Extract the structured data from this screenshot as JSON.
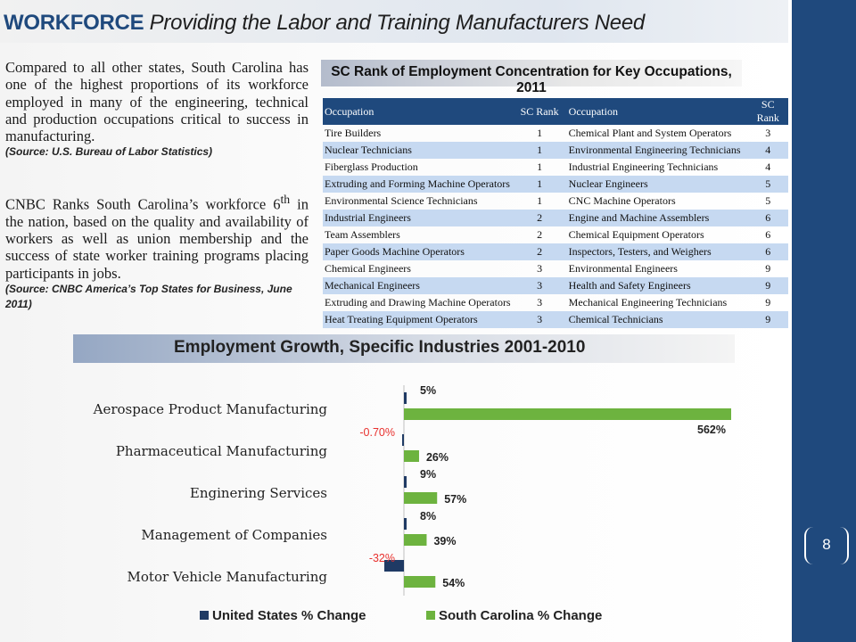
{
  "header": {
    "bold": "WORKFORCE",
    "italic": "Providing the Labor and Training Manufacturers Need"
  },
  "left_text": {
    "para1": "Compared to all other states, South Carolina has one of the highest proportions of its workforce employed in many of the engineering, technical and production occupations critical to success in manufacturing.",
    "source1": "(Source: U.S. Bureau of Labor Statistics)",
    "para2_before": "CNBC Ranks South Carolina’s workforce 6",
    "para2_sup": "th",
    "para2_after": " in the nation, based on the quality and availability of workers as well as union membership and the success of state worker training programs placing participants in jobs.",
    "source2": "(Source: CNBC America’s Top States for Business, June 2011)"
  },
  "table": {
    "title": "SC Rank of Employment Concentration for Key Occupations, 2011",
    "headers": [
      "Occupation",
      "SC Rank",
      "Occupation",
      "SC Rank"
    ],
    "rows": [
      [
        "Tire Builders",
        "1",
        "Chemical Plant and System Operators",
        "3"
      ],
      [
        "Nuclear Technicians",
        "1",
        "Environmental Engineering Technicians",
        "4"
      ],
      [
        "Fiberglass Production",
        "1",
        "Industrial Engineering Technicians",
        "4"
      ],
      [
        "Extruding and Forming Machine Operators",
        "1",
        "Nuclear Engineers",
        "5"
      ],
      [
        "Environmental Science Technicians",
        "1",
        "CNC Machine Operators",
        "5"
      ],
      [
        "Industrial Engineers",
        "2",
        "Engine and Machine Assemblers",
        "6"
      ],
      [
        "Team Assemblers",
        "2",
        "Chemical Equipment Operators",
        "6"
      ],
      [
        "Paper Goods Machine Operators",
        "2",
        "Inspectors, Testers, and Weighers",
        "6"
      ],
      [
        "Chemical Engineers",
        "3",
        "Environmental Engineers",
        "9"
      ],
      [
        "Mechanical Engineers",
        "3",
        "Health and Safety Engineers",
        "9"
      ],
      [
        "Extruding and Drawing Machine Operators",
        "3",
        "Mechanical Engineering Technicians",
        "9"
      ],
      [
        "Heat Treating Equipment Operators",
        "3",
        "Chemical Technicians",
        "9"
      ]
    ]
  },
  "chart_data": {
    "type": "bar",
    "orientation": "horizontal",
    "title": "Employment Growth, Specific Industries 2001-2010",
    "categories": [
      "Aerospace Product Manufacturing",
      "Pharmaceutical Manufacturing",
      "Enginering Services",
      "Management of Companies",
      "Motor Vehicle Manufacturing"
    ],
    "series": [
      {
        "name": "United States % Change",
        "values": [
          5,
          -0.7,
          9,
          8,
          -32
        ],
        "labels": [
          "5%",
          "-0.70%",
          "9%",
          "8%",
          "-32%"
        ],
        "color": "#1f3a64"
      },
      {
        "name": "South Carolina % Change",
        "values": [
          562,
          26,
          57,
          39,
          54
        ],
        "labels": [
          "562%",
          "26%",
          "57%",
          "39%",
          "54%"
        ],
        "color": "#6db33f"
      }
    ],
    "negative_label_color": "#e8312e",
    "legend": "bottom"
  },
  "page_number": "8",
  "colors": {
    "accent": "#1f497d",
    "table_alt_row": "#c6d9f1"
  }
}
